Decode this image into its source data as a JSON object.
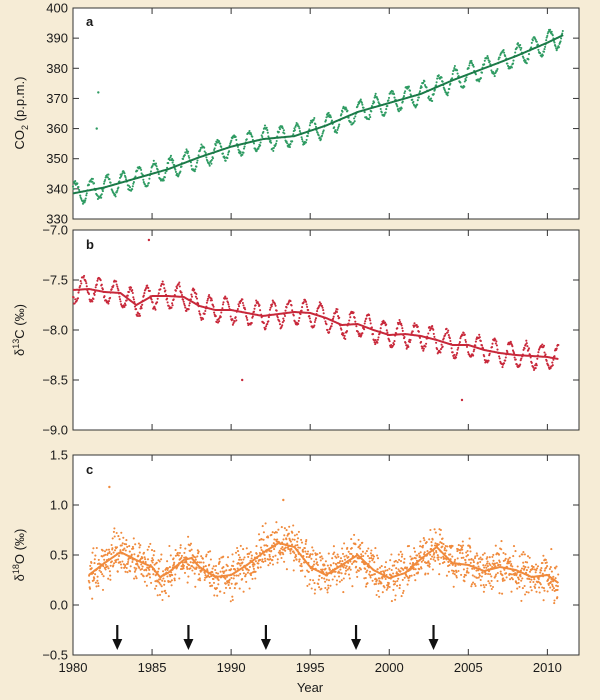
{
  "chart_data": [
    {
      "type": "scatter",
      "panel_label": "a",
      "ylabel": "CO",
      "ylabel_sub": "2",
      "ylabel_unit": " (p.p.m.)",
      "ylim": [
        330,
        400
      ],
      "xlim": [
        1980,
        2012
      ],
      "yticks": [
        "330",
        "340",
        "350",
        "360",
        "370",
        "380",
        "390",
        "400"
      ],
      "colors": {
        "points": "#2e9b62",
        "trend": "#1b7a48"
      },
      "trend_x": [
        1980,
        1982,
        1984,
        1986,
        1988,
        1990,
        1992,
        1994,
        1996,
        1998,
        2000,
        2002,
        2004,
        2006,
        2008,
        2010,
        2011
      ],
      "trend_y": [
        338.5,
        340.5,
        343.5,
        346.5,
        350.5,
        354,
        356.5,
        357.5,
        361,
        365.5,
        368.5,
        371.5,
        376,
        380,
        384,
        388.5,
        391
      ],
      "seasonal_amplitude": 3.5,
      "outliers": [
        [
          1981.6,
          372
        ],
        [
          1981.5,
          360
        ]
      ]
    },
    {
      "type": "scatter",
      "panel_label": "b",
      "ylabel": "δ",
      "ylabel_sup": "13",
      "ylabel_unit": "C (‰)",
      "ylim": [
        -9.0,
        -7.0
      ],
      "xlim": [
        1980,
        2012
      ],
      "yticks": [
        "−7.0",
        "−7.5",
        "−8.0",
        "−8.5",
        "−9.0"
      ],
      "colors": {
        "points": "#c8283a",
        "trend": "#c8283a"
      },
      "trend_x": [
        1980,
        1981,
        1982,
        1983,
        1984,
        1985,
        1986,
        1987,
        1988,
        1989,
        1990,
        1991,
        1992,
        1993,
        1994,
        1995,
        1996,
        1997,
        1998,
        1999,
        2000,
        2001,
        2002,
        2003,
        2004,
        2005,
        2006,
        2007,
        2008,
        2009,
        2010,
        2010.7
      ],
      "trend_y": [
        -7.6,
        -7.59,
        -7.62,
        -7.63,
        -7.75,
        -7.66,
        -7.66,
        -7.67,
        -7.76,
        -7.8,
        -7.8,
        -7.83,
        -7.86,
        -7.84,
        -7.82,
        -7.83,
        -7.88,
        -7.95,
        -7.94,
        -8.0,
        -8.05,
        -8.04,
        -8.06,
        -8.1,
        -8.15,
        -8.15,
        -8.2,
        -8.23,
        -8.25,
        -8.26,
        -8.27,
        -8.29
      ],
      "seasonal_amplitude": 0.12,
      "outliers": [
        [
          1984.8,
          -7.1
        ],
        [
          1990.7,
          -8.5
        ],
        [
          2004.6,
          -8.7
        ]
      ]
    },
    {
      "type": "scatter",
      "panel_label": "c",
      "ylabel": "δ",
      "ylabel_sup": "18",
      "ylabel_unit": "O (‰)",
      "ylim": [
        -0.5,
        1.5
      ],
      "xlim": [
        1980,
        2012
      ],
      "yticks": [
        "1.5",
        "1.0",
        "0.5",
        "0.0",
        "−0.5"
      ],
      "xticks": [
        "1980",
        "1985",
        "1990",
        "1995",
        "2000",
        "2005",
        "2010"
      ],
      "xlabel": "Year",
      "colors": {
        "points": "#f08a3c",
        "trend": "#f08a3c",
        "arrows": "#111111"
      },
      "trend_x": [
        1981,
        1982,
        1983,
        1984,
        1985,
        1985.5,
        1986,
        1987,
        1987.5,
        1988,
        1989,
        1990,
        1991,
        1992,
        1993,
        1994,
        1995,
        1996,
        1997,
        1998,
        1999,
        2000,
        2001,
        2002,
        2003,
        2004,
        2005,
        2006,
        2007,
        2008,
        2009,
        2010,
        2010.7
      ],
      "trend_y": [
        0.3,
        0.42,
        0.53,
        0.45,
        0.38,
        0.28,
        0.32,
        0.45,
        0.47,
        0.38,
        0.28,
        0.3,
        0.4,
        0.52,
        0.62,
        0.58,
        0.38,
        0.3,
        0.4,
        0.5,
        0.35,
        0.27,
        0.32,
        0.46,
        0.58,
        0.42,
        0.4,
        0.34,
        0.38,
        0.35,
        0.28,
        0.3,
        0.22
      ],
      "arrows_x": [
        1982.8,
        1987.3,
        1992.2,
        1997.9,
        2002.8
      ],
      "point_spread": 0.22,
      "outliers": [
        [
          1982.3,
          1.18
        ],
        [
          1993.3,
          1.05
        ]
      ]
    }
  ]
}
